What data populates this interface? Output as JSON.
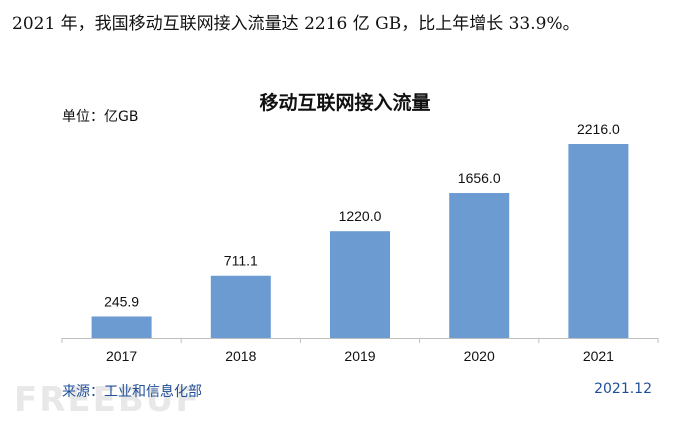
{
  "intro_text": "2021 年，我国移动互联网接入流量达 2216 亿 GB，比上年增长 33.9%。",
  "unit_label": "单位：亿GB",
  "source_label": "来源：工业和信息化部",
  "date_label": "2021.12",
  "watermark_text": "FREEBUF",
  "colors": {
    "bar": "#6b9bd1",
    "axis": "#bfbfbf",
    "source": "#1f4f99"
  },
  "chart_data": {
    "type": "bar",
    "title": "移动互联网接入流量",
    "xlabel": "",
    "ylabel": "",
    "categories": [
      "2017",
      "2018",
      "2019",
      "2020",
      "2021"
    ],
    "values": [
      245.9,
      711.1,
      1220.0,
      1656.0,
      2216.0
    ],
    "value_labels": [
      "245.9",
      "711.1",
      "1220.0",
      "1656.0",
      "2216.0"
    ],
    "ylim": [
      0,
      2216
    ],
    "grid": false,
    "legend": "none"
  }
}
